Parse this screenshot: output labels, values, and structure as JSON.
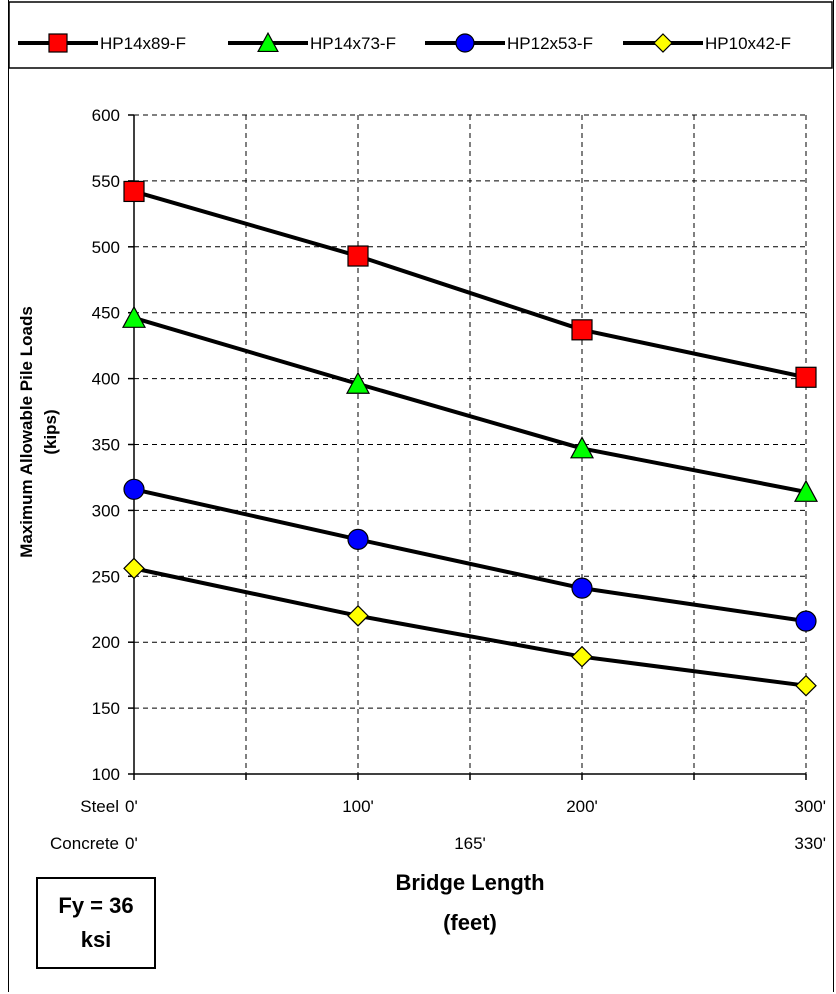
{
  "chart_data": {
    "type": "line",
    "x": [
      0,
      100,
      200,
      300
    ],
    "ylim": [
      100,
      600
    ],
    "yticks": [
      "100",
      "150",
      "200",
      "250",
      "300",
      "350",
      "400",
      "450",
      "500",
      "550",
      "600"
    ],
    "ylabel_line1": "Maximum Allowable Pile Loads",
    "ylabel_line2": "(kips)",
    "xlabel_line1": "Bridge Length",
    "xlabel_line2": "(feet)",
    "steel_row": {
      "label": "Steel",
      "ticks": [
        "0'",
        "100'",
        "200'",
        "300'"
      ]
    },
    "concrete_row": {
      "label": "Concrete",
      "ticks": [
        "0'",
        "165'",
        "330'"
      ]
    },
    "grid": true,
    "legend_position": "top",
    "series": [
      {
        "name": "HP14x89-F",
        "marker": "square",
        "color": "#ff0000",
        "values": [
          542,
          493,
          437,
          401
        ]
      },
      {
        "name": "HP14x73-F",
        "marker": "triangle",
        "color": "#00ff00",
        "values": [
          446,
          396,
          347,
          314
        ]
      },
      {
        "name": "HP12x53-F",
        "marker": "circle",
        "color": "#0000ff",
        "values": [
          316,
          278,
          241,
          216
        ]
      },
      {
        "name": "HP10x42-F",
        "marker": "diamond",
        "color": "#ffff00",
        "values": [
          256,
          220,
          189,
          167
        ]
      }
    ]
  },
  "annotation": {
    "line1": "Fy = 36",
    "line2": "ksi"
  }
}
